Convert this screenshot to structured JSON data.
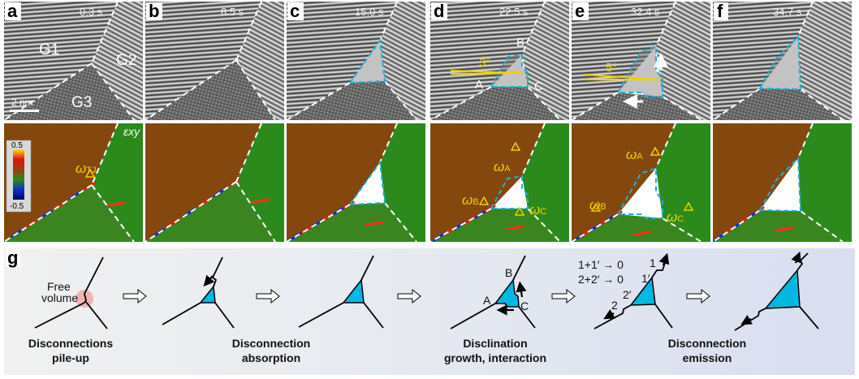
{
  "panels": [
    {
      "label": "a",
      "time": "0.3 s"
    },
    {
      "label": "b",
      "time": "8.5 s"
    },
    {
      "label": "c",
      "time": "15.0 s"
    },
    {
      "label": "d",
      "time": "22.5 s"
    },
    {
      "label": "e",
      "time": "32.4 s"
    },
    {
      "label": "f",
      "time": "34.7 s"
    }
  ],
  "grains": [
    "G1",
    "G2",
    "G3"
  ],
  "scale_bar": "2 nm",
  "panel_d": {
    "angle": "3°",
    "points": [
      "A",
      "B",
      "C"
    ]
  },
  "panel_e": {
    "angle": "5°"
  },
  "strain_map": {
    "component": "εxy",
    "colorbar": {
      "max": "0.5",
      "min": "-0.5",
      "colors": [
        "#ffe000",
        "#e01010",
        "#8a4a10",
        "#2a8a1a",
        "#1030c0",
        "#000070"
      ]
    },
    "omega": "ω",
    "subscripts": {
      "tj": "TJ",
      "a": "A",
      "b": "B",
      "c": "C"
    }
  },
  "colors": {
    "boundary_dashed": "#ffffff",
    "disclination_dashed": "#1ab0d8",
    "annotation": "#f0d000",
    "disclination_fill": "#00b8e0",
    "free_volume": "#f49a9a"
  },
  "schematic": {
    "label": "g",
    "free_volume": [
      "Free",
      "volume"
    ],
    "abc": [
      "A",
      "B",
      "C"
    ],
    "equations": [
      "1+1′ → 0",
      "2+2′ → 0"
    ],
    "marks": [
      "1",
      "1′",
      "2′",
      "2"
    ],
    "captions": [
      [
        "Disconnections",
        "pile-up"
      ],
      [
        "Disconnection",
        "absorption"
      ],
      [
        "Disclination",
        "growth, interaction"
      ],
      [
        "Disconnection",
        "emission"
      ]
    ]
  }
}
